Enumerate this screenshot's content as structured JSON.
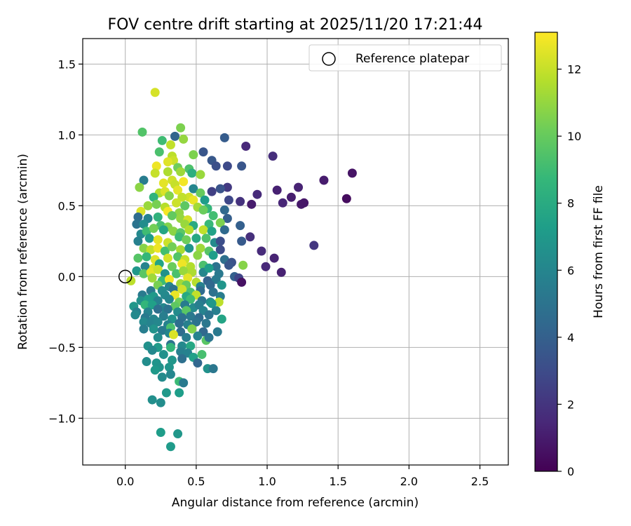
{
  "chart_data": {
    "type": "scatter",
    "title": "FOV centre drift starting at 2025/11/20 17:21:44",
    "xlabel": "Angular distance from reference (arcmin)",
    "ylabel": "Rotation from reference (arcmin)",
    "xlim": [
      -0.3,
      2.7
    ],
    "ylim": [
      -1.33,
      1.68
    ],
    "xticks": [
      0.0,
      0.5,
      1.0,
      1.5,
      2.0,
      2.5
    ],
    "xtick_labels": [
      "0.0",
      "0.5",
      "1.0",
      "1.5",
      "2.0",
      "2.5"
    ],
    "yticks": [
      -1.0,
      -0.5,
      0.0,
      0.5,
      1.0,
      1.5
    ],
    "ytick_labels": [
      "−1.0",
      "−0.5",
      "0.0",
      "0.5",
      "1.0",
      "1.5"
    ],
    "grid": true,
    "legend": {
      "position": "top-right",
      "entries": [
        {
          "label": "Reference platepar",
          "marker": "open-circle"
        }
      ]
    },
    "reference_point": {
      "x": 0.0,
      "y": 0.0
    },
    "colorbar": {
      "label": "Hours from first FF file",
      "range": [
        0,
        13.1
      ],
      "ticks": [
        0,
        2,
        4,
        6,
        8,
        10,
        12
      ],
      "tick_labels": [
        "0",
        "2",
        "4",
        "6",
        "8",
        "10",
        "12"
      ],
      "colormap": "viridis"
    },
    "colors": {
      "viridis": [
        "#440154",
        "#482878",
        "#3e4a89",
        "#31688e",
        "#26828e",
        "#1f9e89",
        "#35b779",
        "#6dcd59",
        "#b4de2c",
        "#fde725"
      ],
      "grid": "#b0b0b0",
      "axis": "#000000"
    },
    "points_note": "each point is [x_arcmin, y_arcmin, hours]",
    "points": [
      [
        0.21,
        1.3,
        12.3
      ],
      [
        0.12,
        1.02,
        9.5
      ],
      [
        0.39,
        1.05,
        10.5
      ],
      [
        0.35,
        0.99,
        4.2
      ],
      [
        0.7,
        0.98,
        3.8
      ],
      [
        0.26,
        0.96,
        9.0
      ],
      [
        0.41,
        0.97,
        11.0
      ],
      [
        0.32,
        0.93,
        11.9
      ],
      [
        0.55,
        0.88,
        3.5
      ],
      [
        0.85,
        0.92,
        1.5
      ],
      [
        1.04,
        0.85,
        1.7
      ],
      [
        0.24,
        0.88,
        9.3
      ],
      [
        0.48,
        0.86,
        10.5
      ],
      [
        0.33,
        0.85,
        11.8
      ],
      [
        0.34,
        0.82,
        12.1
      ],
      [
        0.3,
        0.81,
        12.5
      ],
      [
        0.61,
        0.82,
        3.6
      ],
      [
        0.64,
        0.78,
        3.2
      ],
      [
        0.72,
        0.78,
        2.9
      ],
      [
        0.82,
        0.78,
        3.5
      ],
      [
        0.22,
        0.78,
        12.8
      ],
      [
        0.37,
        0.77,
        10.2
      ],
      [
        0.45,
        0.76,
        9.4
      ],
      [
        0.3,
        0.74,
        11.5
      ],
      [
        0.39,
        0.74,
        11.2
      ],
      [
        0.47,
        0.73,
        8.2
      ],
      [
        0.53,
        0.72,
        11.1
      ],
      [
        0.21,
        0.73,
        12.0
      ],
      [
        1.6,
        0.73,
        0.7
      ],
      [
        1.4,
        0.68,
        1.0
      ],
      [
        0.13,
        0.68,
        5.5
      ],
      [
        0.27,
        0.66,
        12.6
      ],
      [
        0.33,
        0.68,
        12.2
      ],
      [
        0.41,
        0.67,
        12.9
      ],
      [
        0.35,
        0.65,
        12.0
      ],
      [
        0.1,
        0.63,
        10.8
      ],
      [
        0.72,
        0.63,
        2.2
      ],
      [
        0.67,
        0.62,
        3.4
      ],
      [
        0.48,
        0.62,
        6.0
      ],
      [
        1.07,
        0.61,
        1.2
      ],
      [
        1.22,
        0.63,
        1.3
      ],
      [
        0.93,
        0.58,
        1.6
      ],
      [
        1.17,
        0.56,
        1.1
      ],
      [
        1.56,
        0.55,
        0.4
      ],
      [
        0.24,
        0.59,
        11.6
      ],
      [
        0.28,
        0.6,
        12.4
      ],
      [
        0.37,
        0.61,
        12.6
      ],
      [
        0.45,
        0.56,
        12.2
      ],
      [
        0.53,
        0.59,
        10.0
      ],
      [
        0.61,
        0.6,
        2.5
      ],
      [
        0.2,
        0.56,
        8.5
      ],
      [
        0.31,
        0.57,
        10.7
      ],
      [
        0.4,
        0.56,
        11.9
      ],
      [
        0.48,
        0.54,
        12.7
      ],
      [
        0.56,
        0.54,
        7.2
      ],
      [
        0.73,
        0.54,
        2.8
      ],
      [
        0.81,
        0.53,
        1.9
      ],
      [
        0.89,
        0.51,
        1.0
      ],
      [
        1.11,
        0.52,
        1.4
      ],
      [
        1.24,
        0.51,
        0.9
      ],
      [
        1.26,
        0.52,
        0.8
      ],
      [
        0.16,
        0.5,
        11.1
      ],
      [
        0.22,
        0.51,
        10.4
      ],
      [
        0.28,
        0.49,
        11.7
      ],
      [
        0.36,
        0.52,
        12.1
      ],
      [
        0.42,
        0.5,
        9.8
      ],
      [
        0.51,
        0.49,
        11.3
      ],
      [
        0.58,
        0.48,
        8.6
      ],
      [
        0.11,
        0.46,
        12.4
      ],
      [
        0.3,
        0.46,
        12.9
      ],
      [
        0.38,
        0.45,
        10.9
      ],
      [
        0.55,
        0.47,
        10.1
      ],
      [
        0.7,
        0.47,
        4.4
      ],
      [
        0.09,
        0.42,
        4.6
      ],
      [
        0.16,
        0.41,
        5.8
      ],
      [
        0.23,
        0.42,
        8.4
      ],
      [
        0.33,
        0.43,
        9.9
      ],
      [
        0.39,
        0.41,
        11.0
      ],
      [
        0.44,
        0.4,
        12.3
      ],
      [
        0.62,
        0.43,
        9.1
      ],
      [
        0.72,
        0.41,
        3.9
      ],
      [
        0.08,
        0.37,
        5.0
      ],
      [
        0.13,
        0.37,
        6.4
      ],
      [
        0.25,
        0.36,
        9.2
      ],
      [
        0.3,
        0.35,
        10.6
      ],
      [
        0.42,
        0.37,
        11.1
      ],
      [
        0.48,
        0.36,
        8.0
      ],
      [
        0.59,
        0.37,
        8.8
      ],
      [
        0.67,
        0.38,
        10.5
      ],
      [
        0.81,
        0.36,
        4.0
      ],
      [
        0.11,
        0.3,
        6.2
      ],
      [
        0.15,
        0.32,
        9.0
      ],
      [
        0.2,
        0.34,
        10.3
      ],
      [
        0.27,
        0.33,
        7.7
      ],
      [
        0.34,
        0.32,
        10.8
      ],
      [
        0.39,
        0.31,
        9.7
      ],
      [
        0.45,
        0.33,
        11.6
      ],
      [
        0.55,
        0.33,
        11.9
      ],
      [
        0.61,
        0.32,
        7.5
      ],
      [
        0.7,
        0.33,
        4.5
      ],
      [
        0.88,
        0.28,
        1.8
      ],
      [
        0.09,
        0.25,
        5.7
      ],
      [
        0.17,
        0.27,
        7.1
      ],
      [
        0.23,
        0.26,
        12.6
      ],
      [
        0.3,
        0.24,
        12.1
      ],
      [
        0.38,
        0.28,
        8.9
      ],
      [
        0.43,
        0.26,
        10.2
      ],
      [
        0.5,
        0.27,
        7.8
      ],
      [
        0.57,
        0.27,
        9.4
      ],
      [
        0.63,
        0.24,
        6.3
      ],
      [
        0.67,
        0.25,
        3.1
      ],
      [
        0.82,
        0.25,
        3.7
      ],
      [
        0.13,
        0.2,
        10.7
      ],
      [
        0.18,
        0.19,
        11.9
      ],
      [
        0.23,
        0.2,
        12.8
      ],
      [
        0.28,
        0.18,
        9.1
      ],
      [
        0.33,
        0.21,
        10.3
      ],
      [
        0.39,
        0.19,
        11.4
      ],
      [
        0.45,
        0.2,
        6.8
      ],
      [
        0.53,
        0.2,
        11.2
      ],
      [
        0.59,
        0.18,
        9.6
      ],
      [
        0.67,
        0.19,
        3.0
      ],
      [
        0.96,
        0.18,
        1.6
      ],
      [
        1.33,
        0.22,
        2.1
      ],
      [
        0.09,
        0.13,
        9.6
      ],
      [
        0.15,
        0.14,
        8.7
      ],
      [
        0.21,
        0.12,
        12.5
      ],
      [
        0.3,
        0.13,
        12.3
      ],
      [
        0.37,
        0.14,
        9.5
      ],
      [
        0.42,
        0.12,
        12.0
      ],
      [
        0.51,
        0.15,
        10.8
      ],
      [
        0.62,
        0.15,
        7.3
      ],
      [
        0.7,
        0.12,
        4.8
      ],
      [
        0.75,
        0.1,
        3.3
      ],
      [
        1.05,
        0.13,
        1.3
      ],
      [
        0.14,
        0.07,
        5.9
      ],
      [
        0.2,
        0.06,
        12.4
      ],
      [
        0.24,
        0.09,
        7.6
      ],
      [
        0.33,
        0.07,
        10.1
      ],
      [
        0.4,
        0.09,
        12.8
      ],
      [
        0.46,
        0.07,
        11.6
      ],
      [
        0.55,
        0.08,
        9.3
      ],
      [
        0.64,
        0.07,
        4.9
      ],
      [
        0.73,
        0.08,
        3.5
      ],
      [
        0.83,
        0.08,
        10.7
      ],
      [
        0.99,
        0.07,
        1.5
      ],
      [
        0.08,
        0.04,
        6.9
      ],
      [
        0.13,
        0.02,
        9.7
      ],
      [
        0.18,
        0.03,
        12.6
      ],
      [
        0.23,
        0.05,
        12.1
      ],
      [
        0.28,
        0.02,
        6.6
      ],
      [
        0.36,
        0.02,
        9.3
      ],
      [
        0.41,
        0.04,
        11.1
      ],
      [
        0.47,
        0.03,
        11.5
      ],
      [
        0.55,
        0.03,
        6.1
      ],
      [
        0.59,
        0.06,
        7.3
      ],
      [
        0.66,
        0.02,
        5.3
      ],
      [
        0.77,
        0.0,
        4.0
      ],
      [
        0.8,
        -0.01,
        2.7
      ],
      [
        1.1,
        0.03,
        1.2
      ],
      [
        0.04,
        -0.03,
        11.8
      ],
      [
        0.19,
        -0.01,
        11.2
      ],
      [
        0.26,
        -0.03,
        8.9
      ],
      [
        0.31,
        -0.02,
        12.9
      ],
      [
        0.44,
        -0.01,
        12.6
      ],
      [
        0.5,
        -0.04,
        11.7
      ],
      [
        0.58,
        -0.03,
        4.1
      ],
      [
        0.64,
        -0.02,
        5.4
      ],
      [
        0.82,
        -0.04,
        0.6
      ],
      [
        0.23,
        -0.06,
        10.4
      ],
      [
        0.31,
        -0.07,
        6.0
      ],
      [
        0.39,
        -0.05,
        11.3
      ],
      [
        0.43,
        -0.06,
        10.0
      ],
      [
        0.53,
        -0.07,
        5.8
      ],
      [
        0.6,
        -0.06,
        4.4
      ],
      [
        0.68,
        -0.06,
        6.8
      ],
      [
        0.18,
        -0.1,
        5.3
      ],
      [
        0.26,
        -0.1,
        6.3
      ],
      [
        0.34,
        -0.09,
        5.0
      ],
      [
        0.4,
        -0.09,
        12.2
      ],
      [
        0.46,
        -0.11,
        9.3
      ],
      [
        0.53,
        -0.1,
        4.6
      ],
      [
        0.62,
        -0.11,
        4.9
      ],
      [
        0.12,
        -0.13,
        5.4
      ],
      [
        0.2,
        -0.14,
        7.0
      ],
      [
        0.28,
        -0.13,
        6.2
      ],
      [
        0.35,
        -0.13,
        12.7
      ],
      [
        0.43,
        -0.14,
        7.9
      ],
      [
        0.5,
        -0.13,
        11.9
      ],
      [
        0.67,
        -0.14,
        5.5
      ],
      [
        0.11,
        -0.17,
        6.6
      ],
      [
        0.16,
        -0.16,
        7.2
      ],
      [
        0.23,
        -0.17,
        5.8
      ],
      [
        0.31,
        -0.16,
        6.0
      ],
      [
        0.38,
        -0.18,
        10.2
      ],
      [
        0.46,
        -0.16,
        9.0
      ],
      [
        0.54,
        -0.17,
        5.1
      ],
      [
        0.6,
        -0.18,
        6.4
      ],
      [
        0.66,
        -0.18,
        11.8
      ],
      [
        0.06,
        -0.21,
        6.9
      ],
      [
        0.14,
        -0.2,
        8.6
      ],
      [
        0.19,
        -0.2,
        7.4
      ],
      [
        0.27,
        -0.22,
        6.1
      ],
      [
        0.35,
        -0.21,
        9.8
      ],
      [
        0.42,
        -0.2,
        5.5
      ],
      [
        0.48,
        -0.22,
        6.3
      ],
      [
        0.52,
        -0.2,
        5.6
      ],
      [
        0.61,
        -0.19,
        6.9
      ],
      [
        0.08,
        -0.25,
        5.7
      ],
      [
        0.16,
        -0.25,
        5.9
      ],
      [
        0.23,
        -0.23,
        4.8
      ],
      [
        0.3,
        -0.23,
        5.0
      ],
      [
        0.37,
        -0.25,
        6.3
      ],
      [
        0.43,
        -0.24,
        9.7
      ],
      [
        0.55,
        -0.24,
        5.9
      ],
      [
        0.64,
        -0.24,
        5.7
      ],
      [
        0.07,
        -0.27,
        6.2
      ],
      [
        0.14,
        -0.29,
        5.4
      ],
      [
        0.2,
        -0.3,
        6.0
      ],
      [
        0.27,
        -0.28,
        5.6
      ],
      [
        0.33,
        -0.3,
        6.7
      ],
      [
        0.4,
        -0.29,
        4.9
      ],
      [
        0.46,
        -0.28,
        5.3
      ],
      [
        0.52,
        -0.29,
        4.6
      ],
      [
        0.59,
        -0.27,
        5.1
      ],
      [
        0.68,
        -0.3,
        7.6
      ],
      [
        0.13,
        -0.32,
        6.2
      ],
      [
        0.18,
        -0.33,
        5.9
      ],
      [
        0.23,
        -0.32,
        6.1
      ],
      [
        0.3,
        -0.34,
        5.8
      ],
      [
        0.32,
        -0.36,
        9.3
      ],
      [
        0.38,
        -0.33,
        4.7
      ],
      [
        0.44,
        -0.34,
        5.7
      ],
      [
        0.5,
        -0.32,
        5.0
      ],
      [
        0.57,
        -0.33,
        5.2
      ],
      [
        0.13,
        -0.37,
        5.6
      ],
      [
        0.2,
        -0.37,
        6.7
      ],
      [
        0.26,
        -0.38,
        5.4
      ],
      [
        0.31,
        -0.4,
        6.0
      ],
      [
        0.39,
        -0.39,
        4.6
      ],
      [
        0.47,
        -0.37,
        10.6
      ],
      [
        0.55,
        -0.39,
        4.4
      ],
      [
        0.65,
        -0.39,
        5.3
      ],
      [
        0.23,
        -0.43,
        6.4
      ],
      [
        0.34,
        -0.41,
        12.4
      ],
      [
        0.43,
        -0.43,
        5.5
      ],
      [
        0.51,
        -0.42,
        5.9
      ],
      [
        0.57,
        -0.45,
        9.7
      ],
      [
        0.59,
        -0.43,
        5.1
      ],
      [
        0.16,
        -0.49,
        6.6
      ],
      [
        0.23,
        -0.5,
        7.1
      ],
      [
        0.32,
        -0.48,
        4.9
      ],
      [
        0.4,
        -0.49,
        6.2
      ],
      [
        0.46,
        -0.49,
        7.8
      ],
      [
        0.32,
        -0.5,
        8.6
      ],
      [
        0.19,
        -0.52,
        6.2
      ],
      [
        0.27,
        -0.55,
        6.6
      ],
      [
        0.39,
        -0.53,
        5.7
      ],
      [
        0.44,
        -0.54,
        5.8
      ],
      [
        0.54,
        -0.55,
        9.2
      ],
      [
        0.33,
        -0.59,
        6.9
      ],
      [
        0.4,
        -0.58,
        4.8
      ],
      [
        0.48,
        -0.57,
        7.4
      ],
      [
        0.22,
        -0.61,
        6.8
      ],
      [
        0.15,
        -0.6,
        6.4
      ],
      [
        0.51,
        -0.61,
        4.3
      ],
      [
        0.24,
        -0.64,
        6.7
      ],
      [
        0.31,
        -0.64,
        6.8
      ],
      [
        0.58,
        -0.65,
        6.6
      ],
      [
        0.62,
        -0.65,
        5.2
      ],
      [
        0.21,
        -0.66,
        7.0
      ],
      [
        0.32,
        -0.69,
        6.1
      ],
      [
        0.26,
        -0.71,
        6.3
      ],
      [
        0.38,
        -0.74,
        8.9
      ],
      [
        0.41,
        -0.75,
        5.4
      ],
      [
        0.29,
        -0.82,
        7.0
      ],
      [
        0.38,
        -0.82,
        7.3
      ],
      [
        0.19,
        -0.87,
        6.5
      ],
      [
        0.25,
        -0.89,
        6.4
      ],
      [
        0.25,
        -1.1,
        7.2
      ],
      [
        0.37,
        -1.11,
        6.9
      ],
      [
        0.32,
        -1.2,
        7.1
      ]
    ]
  }
}
